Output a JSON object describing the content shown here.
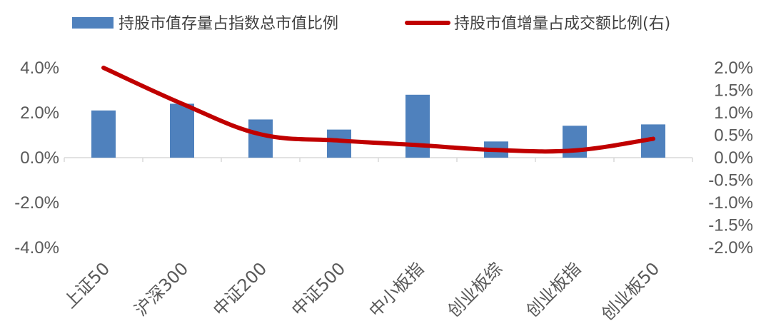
{
  "chart_data": {
    "type": "bar",
    "categories": [
      "上证50",
      "沪深300",
      "中证200",
      "中证500",
      "中小板指",
      "创业板综",
      "创业板指",
      "创业板50"
    ],
    "series": [
      {
        "name": "持股市值存量占指数总市值比例",
        "type": "bar",
        "axis": "left",
        "color": "#4F81BD",
        "values": [
          0.021,
          0.024,
          0.017,
          0.0125,
          0.028,
          0.0072,
          0.0142,
          0.0148
        ]
      },
      {
        "name": "持股市值增量占成交额比例(右)",
        "type": "line",
        "axis": "right",
        "color": "#C00000",
        "values": [
          0.02,
          0.012,
          0.0052,
          0.0038,
          0.0028,
          0.0017,
          0.0016,
          0.0042
        ]
      }
    ],
    "left_axis": {
      "ylim": [
        -0.04,
        0.04
      ],
      "ticks": [
        0.04,
        0.02,
        0.0,
        -0.02,
        -0.04
      ],
      "tick_labels": [
        "4.0%",
        "2.0%",
        "0.0%",
        "-2.0%",
        "-4.0%"
      ]
    },
    "right_axis": {
      "ylim": [
        -0.02,
        0.02
      ],
      "ticks": [
        0.02,
        0.015,
        0.01,
        0.005,
        0.0,
        -0.005,
        -0.01,
        -0.015,
        -0.02
      ],
      "tick_labels": [
        "2.0%",
        "1.5%",
        "1.0%",
        "0.5%",
        "0.0%",
        "-0.5%",
        "-1.0%",
        "-1.5%",
        "-2.0%"
      ]
    },
    "legend_position": "top",
    "grid": false,
    "title": "",
    "xlabel": "",
    "ylabel": ""
  }
}
